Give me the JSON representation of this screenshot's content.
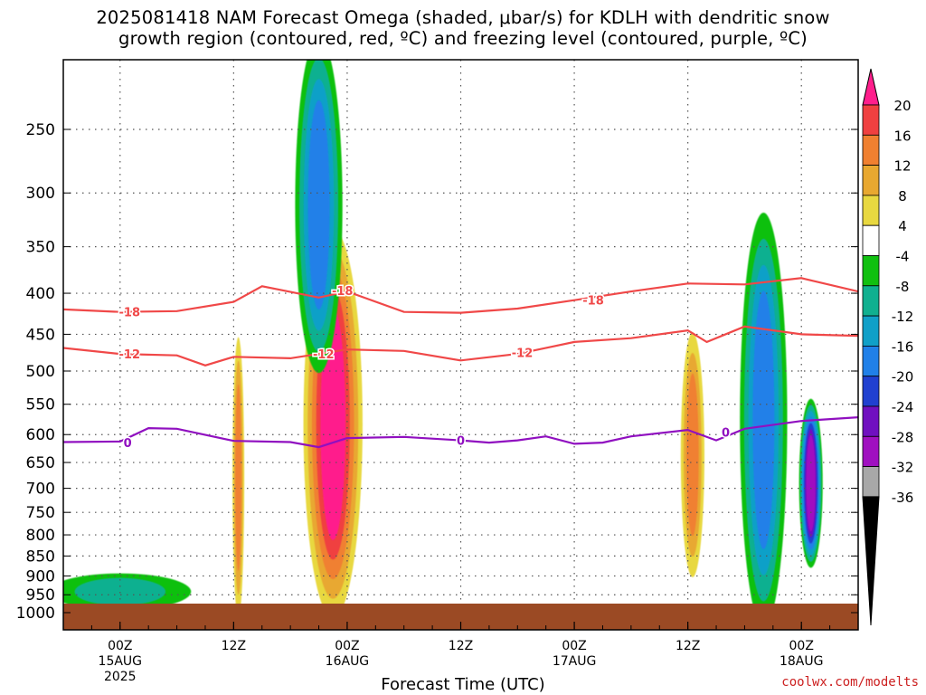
{
  "title": {
    "line1": "2025081418 NAM Forecast Omega (shaded, μbar/s) for KDLH with dendritic snow",
    "line2": "growth region (contoured, red, ºC) and freezing level (contoured, purple, ºC)"
  },
  "xlabel": "Forecast Time (UTC)",
  "credit": "coolwx.com/modelts",
  "colors": {
    "ground": "#9b4a24",
    "dgz_contour": "#f04848",
    "freezing_contour": "#9010c0",
    "grid": "#555555"
  },
  "chart_data": {
    "type": "heatmap",
    "title": "2025081418 NAM Forecast Omega (shaded, μbar/s) for KDLH with dendritic snow growth region (contoured, red, ºC) and freezing level (contoured, purple, ºC)",
    "xlabel": "Forecast Time (UTC)",
    "ylabel": "",
    "y_scale": "pressure (log-p), inverted",
    "y_ticks": [
      250,
      300,
      350,
      400,
      450,
      500,
      550,
      600,
      650,
      700,
      750,
      800,
      850,
      900,
      950,
      1000
    ],
    "x_ticks": [
      {
        "label": "00Z",
        "sub": "15AUG",
        "sub2": "2025",
        "hour": 6
      },
      {
        "label": "12Z",
        "sub": "",
        "sub2": "",
        "hour": 18
      },
      {
        "label": "00Z",
        "sub": "16AUG",
        "sub2": "",
        "hour": 30
      },
      {
        "label": "12Z",
        "sub": "",
        "sub2": "",
        "hour": 42
      },
      {
        "label": "00Z",
        "sub": "17AUG",
        "sub2": "",
        "hour": 54
      },
      {
        "label": "12Z",
        "sub": "",
        "sub2": "",
        "hour": 66
      },
      {
        "label": "00Z",
        "sub": "18AUG",
        "sub2": "",
        "hour": 78
      }
    ],
    "x_range_hours": [
      0,
      84
    ],
    "grid": true,
    "colorbar": {
      "labels": [
        "20",
        "16",
        "12",
        "8",
        "4",
        "-4",
        "-8",
        "-12",
        "-16",
        "-20",
        "-24",
        "-28",
        "-32",
        "-36"
      ],
      "colors": [
        "#ff1e8c",
        "#f04040",
        "#f08030",
        "#e8a830",
        "#e8d840",
        "#ffffff",
        "#10c010",
        "#10b090",
        "#10a0c8",
        "#2080e8",
        "#2040d0",
        "#7010c0",
        "#a010c0",
        "#a8a8a8",
        "#000000"
      ]
    },
    "contours": [
      {
        "label": "-18",
        "color": "#f04848",
        "points": [
          [
            0,
            419
          ],
          [
            6,
            422
          ],
          [
            12,
            421
          ],
          [
            18,
            410
          ],
          [
            21,
            392
          ],
          [
            27,
            405
          ],
          [
            30,
            398
          ],
          [
            36,
            422
          ],
          [
            42,
            423
          ],
          [
            48,
            418
          ],
          [
            54,
            408
          ],
          [
            60,
            398
          ],
          [
            66,
            389
          ],
          [
            72,
            390
          ],
          [
            78,
            383
          ],
          [
            84,
            398
          ]
        ],
        "label_positions": [
          [
            7,
            422
          ],
          [
            29.5,
            397
          ],
          [
            56,
            408
          ]
        ]
      },
      {
        "label": "-12",
        "color": "#f04848",
        "points": [
          [
            0,
            468
          ],
          [
            6,
            476
          ],
          [
            12,
            478
          ],
          [
            15,
            492
          ],
          [
            18,
            480
          ],
          [
            24,
            482
          ],
          [
            30,
            470
          ],
          [
            36,
            472
          ],
          [
            42,
            485
          ],
          [
            48,
            476
          ],
          [
            54,
            460
          ],
          [
            60,
            455
          ],
          [
            66,
            445
          ],
          [
            68,
            460
          ],
          [
            72,
            440
          ],
          [
            78,
            450
          ],
          [
            84,
            452
          ]
        ],
        "label_positions": [
          [
            7,
            476
          ],
          [
            27.5,
            476
          ],
          [
            48.5,
            474
          ]
        ]
      },
      {
        "label": "0",
        "color": "#9010c0",
        "points": [
          [
            0,
            613
          ],
          [
            6,
            612
          ],
          [
            9,
            589
          ],
          [
            12,
            590
          ],
          [
            18,
            611
          ],
          [
            24,
            613
          ],
          [
            27,
            622
          ],
          [
            30,
            606
          ],
          [
            36,
            604
          ],
          [
            42,
            610
          ],
          [
            45,
            614
          ],
          [
            48,
            610
          ],
          [
            51,
            603
          ],
          [
            54,
            616
          ],
          [
            57,
            614
          ],
          [
            60,
            603
          ],
          [
            66,
            592
          ],
          [
            69,
            610
          ],
          [
            72,
            590
          ],
          [
            78,
            577
          ],
          [
            84,
            571
          ]
        ],
        "label_positions": [
          [
            6.8,
            614
          ],
          [
            42,
            610
          ],
          [
            70,
            596
          ]
        ]
      }
    ],
    "shaded_features": [
      {
        "name": "near-surface sinking layer",
        "x_hours": [
          0,
          12
        ],
        "p_top": 900,
        "p_bot": 985,
        "omega": -10
      },
      {
        "name": "strong rising column",
        "x_hours": [
          26,
          31
        ],
        "p_top": 360,
        "p_bot": 940,
        "omega": 20
      },
      {
        "name": "upper-level sinking column",
        "x_hours": [
          25,
          29
        ],
        "p_top": 205,
        "p_bot": 470,
        "omega": -16
      },
      {
        "name": "rising column",
        "x_hours": [
          18,
          19
        ],
        "p_top": 480,
        "p_bot": 960,
        "omega": 12
      },
      {
        "name": "rising column",
        "x_hours": [
          65.5,
          67.5
        ],
        "p_top": 470,
        "p_bot": 860,
        "omega": 12
      },
      {
        "name": "sinking column",
        "x_hours": [
          72,
          76
        ],
        "p_top": 345,
        "p_bot": 960,
        "omega": -16
      },
      {
        "name": "strong sinking column",
        "x_hours": [
          78,
          80
        ],
        "p_top": 560,
        "p_bot": 850,
        "omega": -28
      }
    ]
  }
}
